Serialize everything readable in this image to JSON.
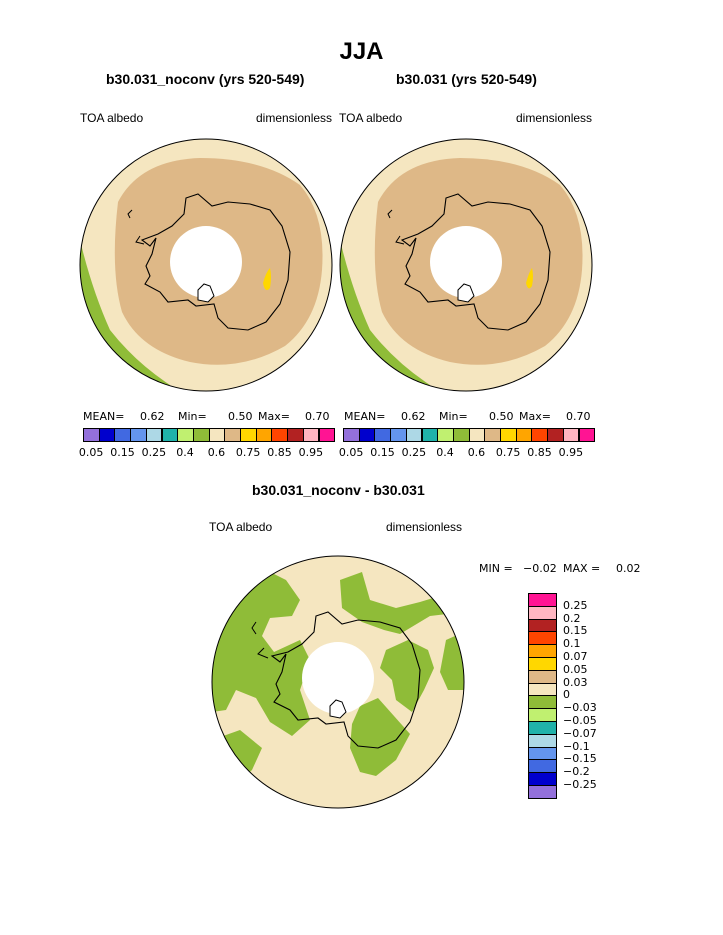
{
  "title": "JJA",
  "panels": [
    {
      "title": "b30.031_noconv (yrs 520-549)",
      "left_label": "TOA albedo",
      "right_label": "dimensionless",
      "mean_label": "MEAN=",
      "mean": "0.62",
      "min_label": "Min=",
      "min": "0.50",
      "max_label": "Max=",
      "max": "0.70"
    },
    {
      "title": "b30.031 (yrs 520-549)",
      "left_label": "TOA albedo",
      "right_label": "dimensionless",
      "mean_label": "MEAN=",
      "mean": "0.62",
      "min_label": "Min=",
      "min": "0.50",
      "max_label": "Max=",
      "max": "0.70"
    }
  ],
  "diff_panel": {
    "title": "b30.031_noconv - b30.031",
    "left_label": "TOA albedo",
    "right_label": "dimensionless",
    "min_label": "MIN =",
    "min": "−0.02",
    "max_label": "MAX =",
    "max": "0.02"
  },
  "colors": {
    "abs_scale": [
      "#9370db",
      "#0000cd",
      "#4169e1",
      "#6495ed",
      "#add8e6",
      "#20b2aa",
      "#c0f070",
      "#8fbc38",
      "#f5e6c0",
      "#deb887",
      "#ffd700",
      "#ffa500",
      "#ff4500",
      "#b22222",
      "#ffb6c1",
      "#ff1493"
    ],
    "diff_scale": [
      "#9370db",
      "#0000cd",
      "#4169e1",
      "#6495ed",
      "#add8e6",
      "#20b2aa",
      "#c0f070",
      "#8fbc38",
      "#f5e6c0",
      "#deb887",
      "#ffd700",
      "#ffa500",
      "#ff4500",
      "#b22222",
      "#ffb6c1",
      "#ff1493"
    ],
    "ocean_light": "#f5e6c0",
    "ice_tan": "#deb887",
    "green": "#8fbc38",
    "yellow": "#ffd700"
  },
  "chart_data": [
    {
      "type": "heatmap",
      "title": "b30.031_noconv (yrs 520-549)",
      "variable": "TOA albedo",
      "units": "dimensionless",
      "projection": "south polar stereographic",
      "levels": [
        "0.05",
        "0.15",
        "0.25",
        "0.4",
        "0.6",
        "0.75",
        "0.85",
        "0.95"
      ],
      "mean": 0.62,
      "min": 0.5,
      "max": 0.7
    },
    {
      "type": "heatmap",
      "title": "b30.031 (yrs 520-549)",
      "variable": "TOA albedo",
      "units": "dimensionless",
      "projection": "south polar stereographic",
      "levels": [
        "0.05",
        "0.15",
        "0.25",
        "0.4",
        "0.6",
        "0.75",
        "0.85",
        "0.95"
      ],
      "mean": 0.62,
      "min": 0.5,
      "max": 0.7
    },
    {
      "type": "heatmap",
      "title": "b30.031_noconv - b30.031",
      "variable": "TOA albedo",
      "units": "dimensionless",
      "projection": "south polar stereographic",
      "levels": [
        "0.25",
        "0.2",
        "0.15",
        "0.1",
        "0.07",
        "0.05",
        "0.03",
        "0",
        "−0.03",
        "−0.05",
        "−0.07",
        "−0.1",
        "−0.15",
        "−0.2",
        "−0.25"
      ],
      "min": -0.02,
      "max": 0.02
    }
  ]
}
